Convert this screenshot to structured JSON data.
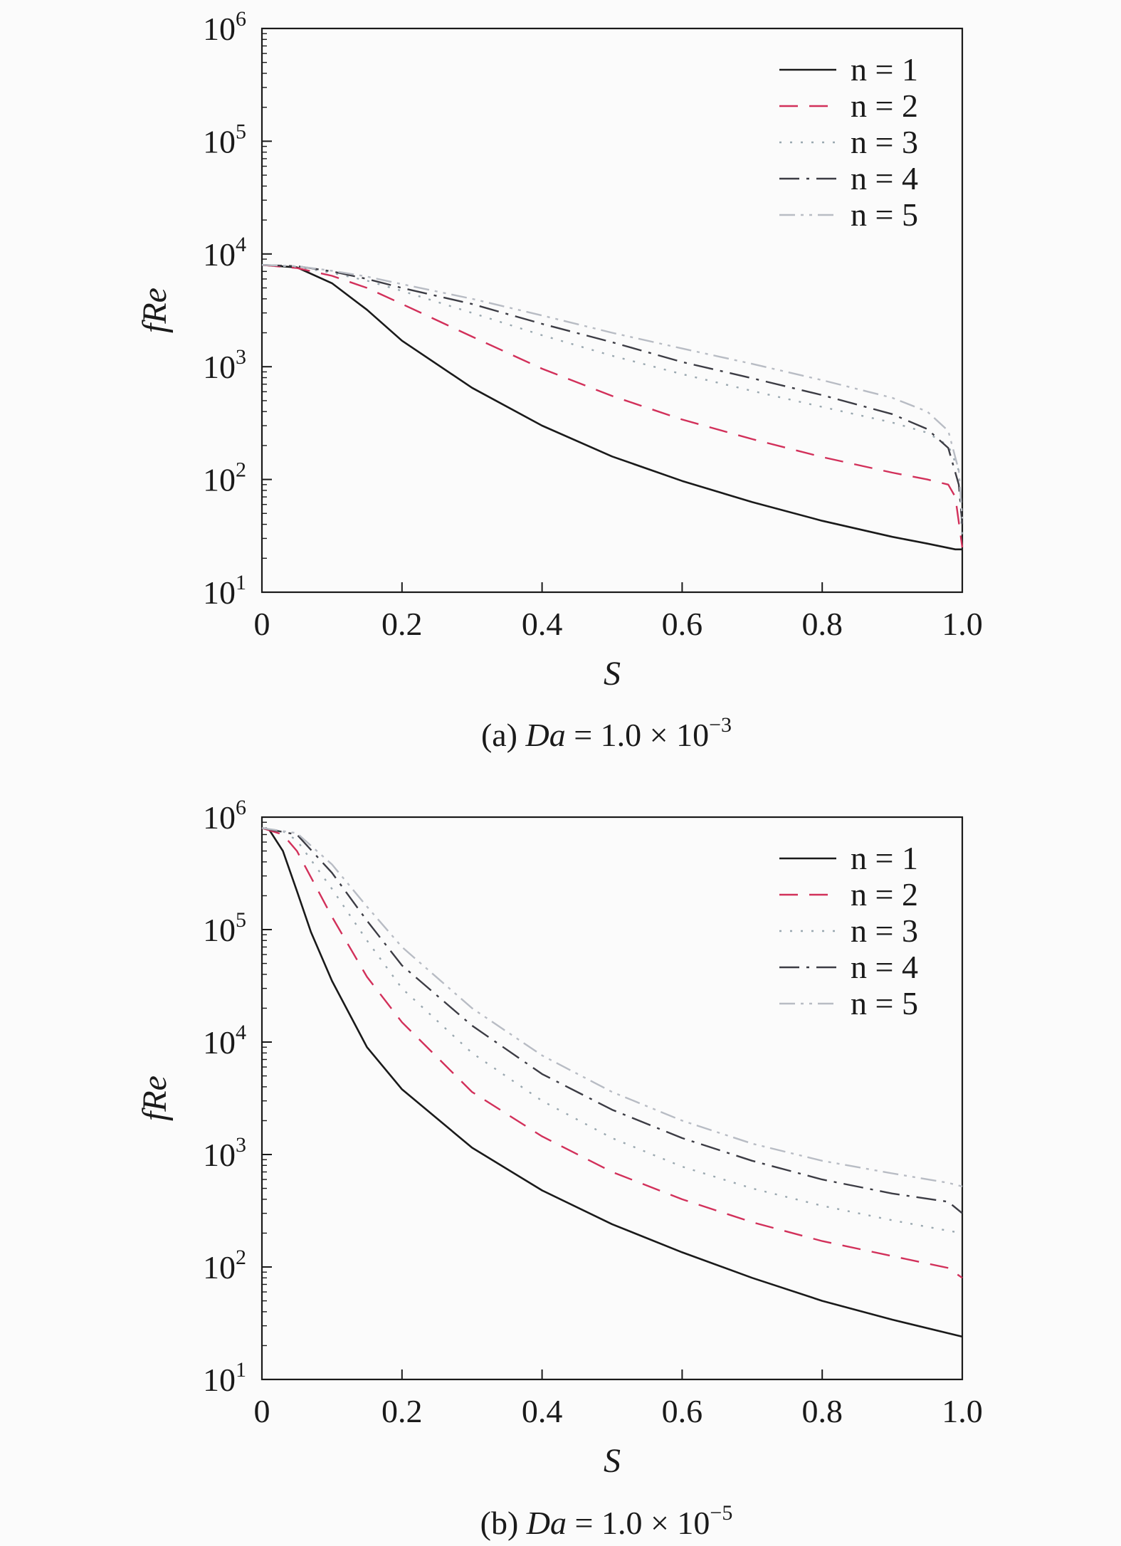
{
  "style": {
    "series_colors": [
      "#1a1a1a",
      "#d2305a",
      "#9aa8b0",
      "#3c3c44",
      "#b8bcc4"
    ],
    "series_dash": [
      "",
      "26,16",
      "3,12",
      "28,10,4,10",
      "22,8,4,8,4,8"
    ]
  },
  "chart_data": [
    {
      "type": "line",
      "xlabel": "S",
      "ylabel": "fRe",
      "caption": {
        "prefix": "(a) ",
        "var": "Da",
        "value": " = 1.0 × 10",
        "exp": "−3"
      },
      "xlim": [
        0,
        1.0
      ],
      "ylim": [
        10,
        1000000
      ],
      "yscale": "log",
      "xticks": [
        "0",
        "0.2",
        "0.4",
        "0.6",
        "0.8",
        "1.0"
      ],
      "yticks": [
        {
          "base": "10",
          "exp": "1"
        },
        {
          "base": "10",
          "exp": "2"
        },
        {
          "base": "10",
          "exp": "3"
        },
        {
          "base": "10",
          "exp": "4"
        },
        {
          "base": "10",
          "exp": "5"
        },
        {
          "base": "10",
          "exp": "6"
        }
      ],
      "legend_position": "top-right",
      "series": [
        {
          "name": "n = 1",
          "points": [
            [
              0,
              8000
            ],
            [
              0.05,
              7600
            ],
            [
              0.1,
              5500
            ],
            [
              0.15,
              3200
            ],
            [
              0.2,
              1700
            ],
            [
              0.3,
              650
            ],
            [
              0.4,
              300
            ],
            [
              0.5,
              160
            ],
            [
              0.6,
              97
            ],
            [
              0.7,
              63
            ],
            [
              0.8,
              43
            ],
            [
              0.9,
              31
            ],
            [
              0.95,
              27
            ],
            [
              0.99,
              24
            ],
            [
              1.0,
              24
            ]
          ]
        },
        {
          "name": "n = 2",
          "points": [
            [
              0,
              8000
            ],
            [
              0.05,
              7500
            ],
            [
              0.1,
              6400
            ],
            [
              0.15,
              5000
            ],
            [
              0.2,
              3600
            ],
            [
              0.3,
              1850
            ],
            [
              0.4,
              960
            ],
            [
              0.5,
              550
            ],
            [
              0.6,
              340
            ],
            [
              0.7,
              228
            ],
            [
              0.8,
              158
            ],
            [
              0.9,
              115
            ],
            [
              0.95,
              100
            ],
            [
              0.98,
              90
            ],
            [
              0.99,
              70
            ],
            [
              1.0,
              25
            ]
          ]
        },
        {
          "name": "n = 3",
          "points": [
            [
              0,
              8000
            ],
            [
              0.05,
              7700
            ],
            [
              0.1,
              6800
            ],
            [
              0.15,
              5800
            ],
            [
              0.2,
              4700
            ],
            [
              0.3,
              3000
            ],
            [
              0.4,
              1900
            ],
            [
              0.5,
              1250
            ],
            [
              0.6,
              860
            ],
            [
              0.7,
              610
            ],
            [
              0.8,
              440
            ],
            [
              0.9,
              320
            ],
            [
              0.95,
              260
            ],
            [
              0.98,
              200
            ],
            [
              0.995,
              120
            ],
            [
              1.0,
              30
            ]
          ]
        },
        {
          "name": "n = 4",
          "points": [
            [
              0,
              8000
            ],
            [
              0.05,
              7800
            ],
            [
              0.1,
              7000
            ],
            [
              0.15,
              6000
            ],
            [
              0.2,
              5000
            ],
            [
              0.3,
              3600
            ],
            [
              0.4,
              2400
            ],
            [
              0.5,
              1650
            ],
            [
              0.6,
              1100
            ],
            [
              0.7,
              790
            ],
            [
              0.8,
              560
            ],
            [
              0.9,
              380
            ],
            [
              0.95,
              280
            ],
            [
              0.98,
              190
            ],
            [
              0.995,
              90
            ],
            [
              1.0,
              40
            ]
          ]
        },
        {
          "name": "n = 5",
          "points": [
            [
              0,
              8000
            ],
            [
              0.05,
              7800
            ],
            [
              0.1,
              7100
            ],
            [
              0.15,
              6300
            ],
            [
              0.2,
              5400
            ],
            [
              0.3,
              4000
            ],
            [
              0.4,
              2850
            ],
            [
              0.5,
              2000
            ],
            [
              0.6,
              1450
            ],
            [
              0.7,
              1060
            ],
            [
              0.8,
              760
            ],
            [
              0.9,
              530
            ],
            [
              0.95,
              400
            ],
            [
              0.98,
              270
            ],
            [
              0.995,
              120
            ],
            [
              1.0,
              45
            ]
          ]
        }
      ]
    },
    {
      "type": "line",
      "xlabel": "S",
      "ylabel": "fRe",
      "caption": {
        "prefix": "(b) ",
        "var": "Da",
        "value": " = 1.0 × 10",
        "exp": "−5"
      },
      "xlim": [
        0,
        1.0
      ],
      "ylim": [
        10,
        1000000
      ],
      "yscale": "log",
      "xticks": [
        "0",
        "0.2",
        "0.4",
        "0.6",
        "0.8",
        "1.0"
      ],
      "yticks": [
        {
          "base": "10",
          "exp": "1"
        },
        {
          "base": "10",
          "exp": "2"
        },
        {
          "base": "10",
          "exp": "3"
        },
        {
          "base": "10",
          "exp": "4"
        },
        {
          "base": "10",
          "exp": "5"
        },
        {
          "base": "10",
          "exp": "6"
        }
      ],
      "legend_position": "top-right",
      "series": [
        {
          "name": "n = 1",
          "points": [
            [
              0,
              800000
            ],
            [
              0.01,
              780000
            ],
            [
              0.03,
              500000
            ],
            [
              0.05,
              220000
            ],
            [
              0.07,
              95000
            ],
            [
              0.1,
              35000
            ],
            [
              0.15,
              9000
            ],
            [
              0.2,
              3800
            ],
            [
              0.3,
              1150
            ],
            [
              0.4,
              480
            ],
            [
              0.5,
              240
            ],
            [
              0.6,
              135
            ],
            [
              0.7,
              80
            ],
            [
              0.8,
              50
            ],
            [
              0.9,
              34
            ],
            [
              1.0,
              24
            ]
          ]
        },
        {
          "name": "n = 2",
          "points": [
            [
              0,
              800000
            ],
            [
              0.03,
              700000
            ],
            [
              0.05,
              500000
            ],
            [
              0.1,
              130000
            ],
            [
              0.15,
              38000
            ],
            [
              0.2,
              15000
            ],
            [
              0.3,
              3600
            ],
            [
              0.4,
              1450
            ],
            [
              0.5,
              700
            ],
            [
              0.6,
              400
            ],
            [
              0.7,
              250
            ],
            [
              0.8,
              170
            ],
            [
              0.9,
              125
            ],
            [
              0.98,
              98
            ],
            [
              1.0,
              80
            ]
          ]
        },
        {
          "name": "n = 3",
          "points": [
            [
              0,
              800000
            ],
            [
              0.03,
              750000
            ],
            [
              0.05,
              620000
            ],
            [
              0.1,
              230000
            ],
            [
              0.15,
              80000
            ],
            [
              0.2,
              30000
            ],
            [
              0.3,
              8000
            ],
            [
              0.4,
              3000
            ],
            [
              0.5,
              1400
            ],
            [
              0.6,
              780
            ],
            [
              0.7,
              500
            ],
            [
              0.8,
              350
            ],
            [
              0.9,
              260
            ],
            [
              0.98,
              210
            ],
            [
              1.0,
              200
            ]
          ]
        },
        {
          "name": "n = 4",
          "points": [
            [
              0,
              800000
            ],
            [
              0.05,
              700000
            ],
            [
              0.1,
              320000
            ],
            [
              0.15,
              120000
            ],
            [
              0.2,
              48000
            ],
            [
              0.3,
              14000
            ],
            [
              0.4,
              5200
            ],
            [
              0.5,
              2500
            ],
            [
              0.6,
              1400
            ],
            [
              0.7,
              880
            ],
            [
              0.8,
              600
            ],
            [
              0.9,
              450
            ],
            [
              0.98,
              380
            ],
            [
              1.0,
              300
            ]
          ]
        },
        {
          "name": "n = 5",
          "points": [
            [
              0,
              800000
            ],
            [
              0.05,
              720000
            ],
            [
              0.1,
              380000
            ],
            [
              0.15,
              160000
            ],
            [
              0.2,
              70000
            ],
            [
              0.3,
              20000
            ],
            [
              0.4,
              7600
            ],
            [
              0.5,
              3600
            ],
            [
              0.6,
              2000
            ],
            [
              0.7,
              1250
            ],
            [
              0.8,
              880
            ],
            [
              0.9,
              680
            ],
            [
              0.98,
              560
            ],
            [
              1.0,
              520
            ]
          ]
        }
      ]
    }
  ]
}
